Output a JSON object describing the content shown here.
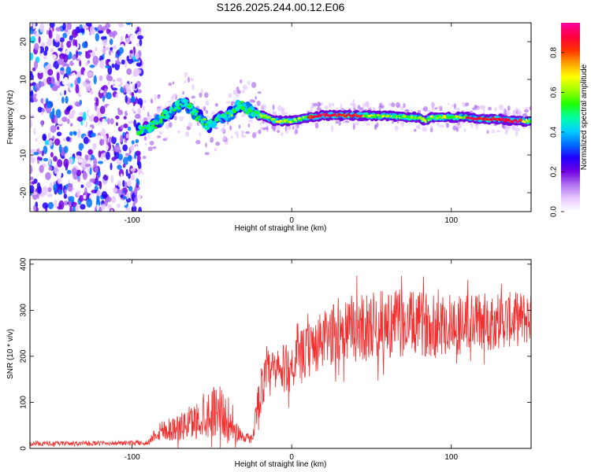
{
  "title": "S126.2025.244.00.12.E06",
  "chart_data": [
    {
      "type": "heatmap",
      "title": "S126.2025.244.00.12.E06",
      "xlabel": "Height of straight line (km)",
      "ylabel": "Frequency (Hz)",
      "xlim": [
        -164,
        150
      ],
      "ylim": [
        -25,
        25
      ],
      "xticks": [
        -100,
        0,
        100
      ],
      "yticks": [
        -20,
        -10,
        0,
        10,
        20
      ],
      "colorbar": {
        "label": "Normalized spectral amplitude",
        "range": [
          0.0,
          0.95
        ],
        "ticks": [
          0.0,
          0.2,
          0.4,
          0.6,
          0.8
        ],
        "colors": [
          "#ffffff",
          "#e6c8ff",
          "#b070f0",
          "#7000e0",
          "#2000ff",
          "#0070ff",
          "#00d0ff",
          "#00ffa0",
          "#20ff00",
          "#a0ff00",
          "#ffff00",
          "#ffa000",
          "#ff3000",
          "#ff0040",
          "#ff00a0"
        ]
      },
      "ridge": {
        "x": [
          -96,
          -90,
          -85,
          -80,
          -75,
          -72,
          -68,
          -64,
          -60,
          -56,
          -52,
          -48,
          -44,
          -40,
          -36,
          -32,
          -28,
          -24,
          -20,
          -16,
          -10,
          -4,
          0,
          10,
          20,
          30,
          40,
          50,
          60,
          70,
          80,
          84,
          88,
          100,
          110,
          120,
          130,
          140,
          150
        ],
        "y": [
          -3.5,
          -2.5,
          -2.0,
          0.5,
          1.5,
          3.0,
          4.0,
          3.0,
          1.0,
          -1.0,
          -2.0,
          -1.0,
          0.0,
          0.5,
          2.0,
          3.5,
          2.0,
          1.0,
          0.5,
          0.0,
          -1.0,
          -1.0,
          -1.0,
          0.0,
          0.5,
          0.5,
          0.5,
          0.3,
          0.3,
          0.0,
          0.0,
          -1.0,
          0.0,
          0.0,
          0.0,
          -0.5,
          -0.5,
          -1.0,
          -1.0
        ]
      },
      "noise_region_x": [
        -164,
        -94
      ]
    },
    {
      "type": "line",
      "xlabel": "Height of straight line (km)",
      "ylabel": "SNR (10 * v/v)",
      "xlim": [
        -164,
        150
      ],
      "ylim": [
        0,
        410
      ],
      "xticks": [
        -100,
        0,
        100
      ],
      "yticks": [
        0,
        100,
        200,
        300,
        400
      ],
      "series": [
        {
          "name": "SNR",
          "color": "#f03030",
          "profile_x": [
            -164,
            -90,
            -86,
            -82,
            -70,
            -60,
            -50,
            -45,
            -40,
            -30,
            -25,
            -20,
            -15,
            -10,
            -5,
            0,
            10,
            20,
            30,
            40,
            50,
            60,
            80,
            100,
            120,
            140,
            150
          ],
          "profile_mean": [
            10,
            12,
            30,
            40,
            45,
            60,
            80,
            90,
            50,
            25,
            20,
            120,
            160,
            165,
            170,
            180,
            210,
            235,
            255,
            260,
            265,
            270,
            270,
            270,
            275,
            280,
            285
          ],
          "profile_spread": [
            5,
            5,
            15,
            25,
            30,
            40,
            55,
            60,
            40,
            12,
            10,
            50,
            55,
            55,
            55,
            55,
            60,
            65,
            70,
            75,
            75,
            75,
            70,
            70,
            65,
            60,
            60
          ]
        }
      ]
    }
  ]
}
